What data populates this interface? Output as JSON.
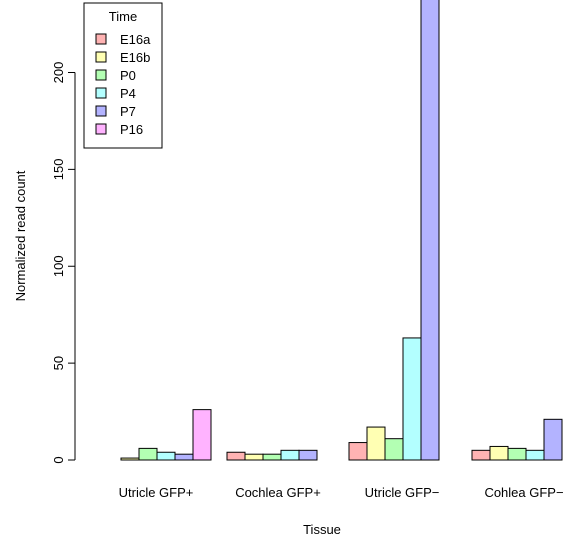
{
  "chart_data": {
    "type": "bar",
    "xlabel": "Tissue",
    "ylabel": "Normalized read count",
    "ylim": [
      0,
      240
    ],
    "yticks": [
      0,
      50,
      100,
      150,
      200
    ],
    "categories": [
      "Utricle GFP+",
      "Cochlea GFP+",
      "Utricle GFP−",
      "Cohlea GFP−"
    ],
    "legend": {
      "title": "Time",
      "position": "top-left"
    },
    "series": [
      {
        "name": "E16a",
        "color": "#ffb3b3",
        "values": [
          0,
          4,
          9,
          5
        ]
      },
      {
        "name": "E16b",
        "color": "#ffffb3",
        "values": [
          1,
          3,
          17,
          7
        ]
      },
      {
        "name": "P0",
        "color": "#b3ffb3",
        "values": [
          6,
          3,
          11,
          6
        ]
      },
      {
        "name": "P4",
        "color": "#b3ffff",
        "values": [
          4,
          5,
          63,
          5
        ]
      },
      {
        "name": "P7",
        "color": "#b3b3ff",
        "values": [
          3,
          5,
          238,
          21
        ]
      },
      {
        "name": "P16",
        "color": "#ffb3ff",
        "values": [
          26,
          null,
          null,
          null
        ]
      }
    ]
  }
}
